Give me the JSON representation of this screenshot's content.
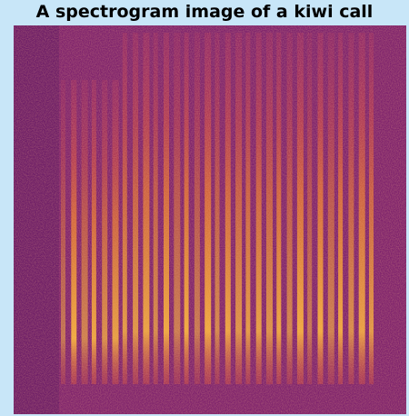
{
  "title": "A spectrogram image of a kiwi call"
}
